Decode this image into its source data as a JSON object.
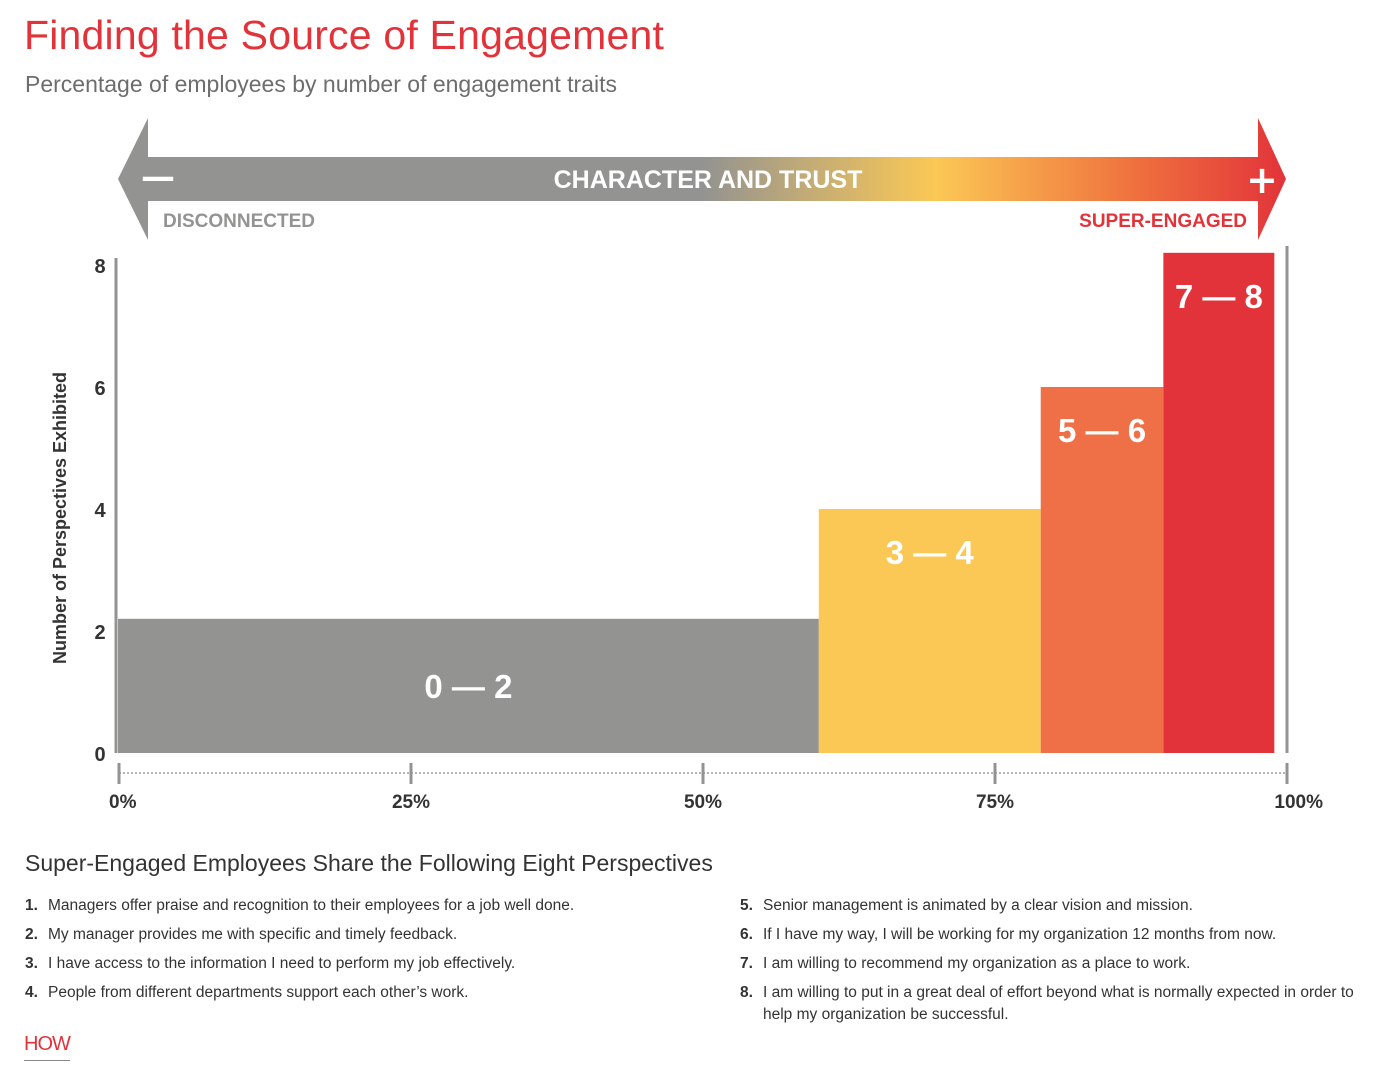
{
  "header": {
    "title": "Finding the Source of Engagement",
    "subtitle": "Percentage of employees by number of engagement traits"
  },
  "arrow": {
    "label": "CHARACTER AND TRUST",
    "minus": "—",
    "plus": "+",
    "left_label": "DISCONNECTED",
    "right_label": "SUPER-ENGAGED",
    "colors": {
      "gray": "#939391",
      "yellow": "#fbc855",
      "orange": "#ef7046",
      "red": "#e2333a"
    }
  },
  "chart_data": {
    "type": "bar",
    "xlabel": "",
    "ylabel": "Number of Perspectives Exhibited",
    "xlim": [
      0,
      100
    ],
    "ylim": [
      0,
      8
    ],
    "x_ticks": [
      0,
      25,
      50,
      75,
      100
    ],
    "x_tick_labels": [
      "0%",
      "25%",
      "50%",
      "75%",
      "100%"
    ],
    "y_ticks": [
      0,
      2,
      4,
      6,
      8
    ],
    "y_tick_labels": [
      "0",
      "2",
      "4",
      "6",
      "8"
    ],
    "bars": [
      {
        "label": "0 — 2",
        "x_start": 0,
        "x_end": 60,
        "value": 2.2,
        "color": "#939391"
      },
      {
        "label": "3 — 4",
        "x_start": 60,
        "x_end": 79,
        "value": 4,
        "color": "#fbc855"
      },
      {
        "label": "5 — 6",
        "x_start": 79,
        "x_end": 89.5,
        "value": 6,
        "color": "#ef7046"
      },
      {
        "label": "7 — 8",
        "x_start": 89.5,
        "x_end": 99,
        "value": 8.2,
        "color": "#e2333a"
      }
    ]
  },
  "perspectives": {
    "heading": "Super-Engaged Employees Share the Following Eight Perspectives",
    "items": [
      {
        "num": "1.",
        "text": "Managers offer praise and recognition to their employees for a job well done."
      },
      {
        "num": "2.",
        "text": "My manager provides me with specific and timely feedback."
      },
      {
        "num": "3.",
        "text": "I have access to the information I need to perform my job effectively."
      },
      {
        "num": "4.",
        "text": "People from different departments support each other’s work."
      },
      {
        "num": "5.",
        "text": "Senior management is animated by a clear vision and mission."
      },
      {
        "num": "6.",
        "text": "If I have my way, I will be working for my organization 12 months from now."
      },
      {
        "num": "7.",
        "text": "I am willing to recommend my organization as a place to work."
      },
      {
        "num": "8.",
        "text": "I am willing to put in a great deal of effort beyond what is normally expected in order to help my organization be successful."
      }
    ]
  },
  "footer": {
    "logo": "HOW"
  }
}
